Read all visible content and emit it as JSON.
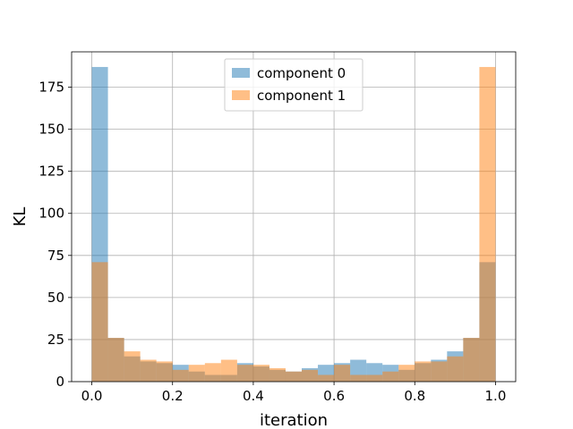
{
  "chart_data": {
    "type": "bar",
    "title": "",
    "xlabel": "iteration",
    "ylabel": "KL",
    "xlim": [
      -0.05,
      1.05
    ],
    "ylim": [
      0,
      196
    ],
    "xticks": [
      0.0,
      0.2,
      0.4,
      0.6,
      0.8,
      1.0
    ],
    "xtick_labels": [
      "0.0",
      "0.2",
      "0.4",
      "0.6",
      "0.8",
      "1.0"
    ],
    "yticks": [
      0,
      25,
      50,
      75,
      100,
      125,
      150,
      175
    ],
    "ytick_labels": [
      "0",
      "25",
      "50",
      "75",
      "100",
      "125",
      "150",
      "175"
    ],
    "grid": true,
    "legend_position": "top-center",
    "bin_edges": [
      0.0,
      0.04,
      0.08,
      0.12,
      0.16,
      0.2,
      0.24,
      0.28,
      0.32,
      0.36,
      0.4,
      0.44,
      0.48,
      0.52,
      0.56,
      0.6,
      0.64,
      0.68,
      0.72,
      0.76,
      0.8,
      0.84,
      0.88,
      0.92,
      0.96,
      1.0
    ],
    "series": [
      {
        "name": "component 0",
        "color": "#1f77b4",
        "values": [
          187,
          26,
          15,
          12,
          11,
          10,
          6,
          4,
          4,
          11,
          9,
          7,
          6,
          8,
          10,
          11,
          13,
          11,
          10,
          7,
          11,
          13,
          18,
          26,
          71
        ]
      },
      {
        "name": "component 1",
        "color": "#ff7f0e",
        "values": [
          71,
          26,
          18,
          13,
          12,
          7,
          10,
          11,
          13,
          10,
          10,
          8,
          6,
          7,
          4,
          10,
          4,
          4,
          6,
          10,
          12,
          12,
          15,
          26,
          187
        ]
      }
    ]
  }
}
